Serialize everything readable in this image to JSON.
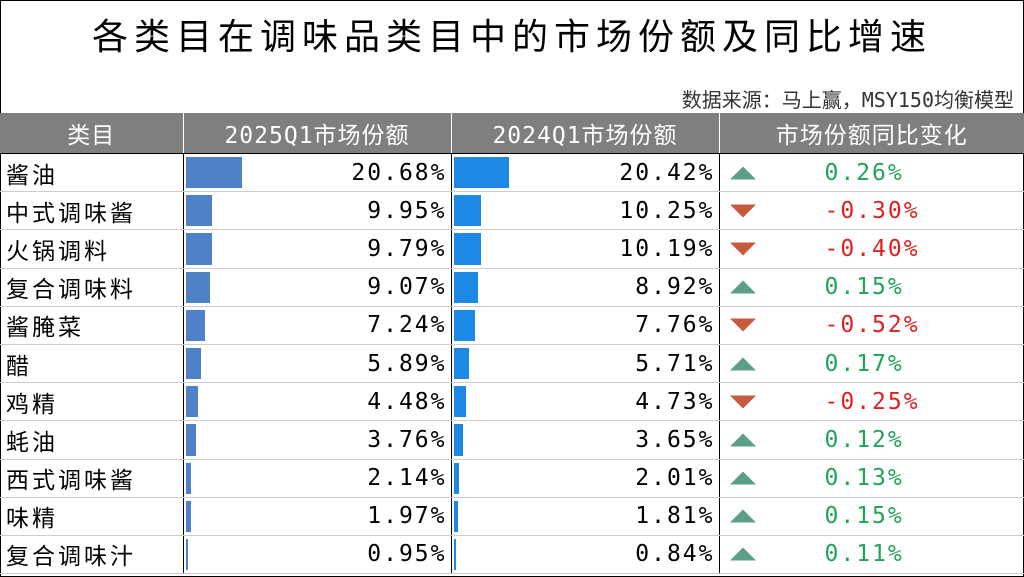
{
  "title": "各类目在调味品类目中的市场份额及同比增速",
  "source": "数据来源：马上赢，MSY150均衡模型",
  "colors": {
    "bar2025": "#4f81c7",
    "bar2024": "#1e88e5",
    "positive": "#22a35a",
    "negative": "#e02020",
    "up_arrow": "#5b9f8a",
    "down_arrow": "#c55a3c",
    "header_bg": "#7f7f7f"
  },
  "headers": [
    "类目",
    "2025Q1市场份额",
    "2024Q1市场份额",
    "市场份额同比变化"
  ],
  "rows": [
    {
      "category": "酱油",
      "share_2025": "20.68%",
      "share_2024": "20.42%",
      "change": "0.26%"
    },
    {
      "category": "中式调味酱",
      "share_2025": "9.95%",
      "share_2024": "10.25%",
      "change": "-0.30%"
    },
    {
      "category": "火锅调料",
      "share_2025": "9.79%",
      "share_2024": "10.19%",
      "change": "-0.40%"
    },
    {
      "category": "复合调味料",
      "share_2025": "9.07%",
      "share_2024": "8.92%",
      "change": "0.15%"
    },
    {
      "category": "酱腌菜",
      "share_2025": "7.24%",
      "share_2024": "7.76%",
      "change": "-0.52%"
    },
    {
      "category": "醋",
      "share_2025": "5.89%",
      "share_2024": "5.71%",
      "change": "0.17%"
    },
    {
      "category": "鸡精",
      "share_2025": "4.48%",
      "share_2024": "4.73%",
      "change": "-0.25%"
    },
    {
      "category": "蚝油",
      "share_2025": "3.76%",
      "share_2024": "3.65%",
      "change": "0.12%"
    },
    {
      "category": "西式调味酱",
      "share_2025": "2.14%",
      "share_2024": "2.01%",
      "change": "0.13%"
    },
    {
      "category": "味精",
      "share_2025": "1.97%",
      "share_2024": "1.81%",
      "change": "0.15%"
    },
    {
      "category": "复合调味汁",
      "share_2025": "0.95%",
      "share_2024": "0.84%",
      "change": "0.11%"
    }
  ],
  "chart_data": {
    "type": "table",
    "title": "各类目在调味品类目中的市场份额及同比增速",
    "categories": [
      "酱油",
      "中式调味酱",
      "火锅调料",
      "复合调味料",
      "酱腌菜",
      "醋",
      "鸡精",
      "蚝油",
      "西式调味酱",
      "味精",
      "复合调味汁"
    ],
    "series": [
      {
        "name": "2025Q1市场份额",
        "values": [
          20.68,
          9.95,
          9.79,
          9.07,
          7.24,
          5.89,
          4.48,
          3.76,
          2.14,
          1.97,
          0.95
        ]
      },
      {
        "name": "2024Q1市场份额",
        "values": [
          20.42,
          10.25,
          10.19,
          8.92,
          7.76,
          5.71,
          4.73,
          3.65,
          2.01,
          1.81,
          0.84
        ]
      },
      {
        "name": "市场份额同比变化",
        "values": [
          0.26,
          -0.3,
          -0.4,
          0.15,
          -0.52,
          0.17,
          -0.25,
          0.12,
          0.13,
          0.15,
          0.11
        ]
      }
    ]
  }
}
